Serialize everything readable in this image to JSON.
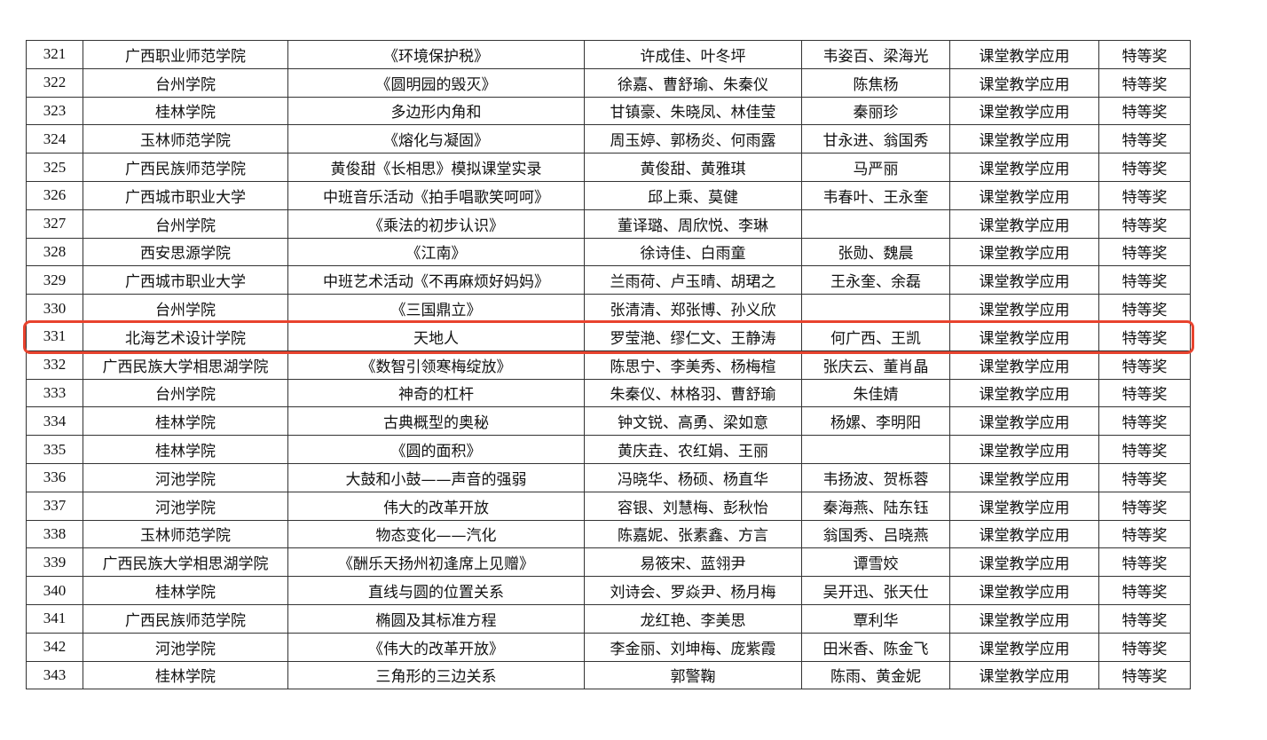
{
  "rows": [
    [
      "321",
      "广西职业师范学院",
      "《环境保护税》",
      "许成佳、叶冬坪",
      "韦姿百、梁海光",
      "课堂教学应用",
      "特等奖"
    ],
    [
      "322",
      "台州学院",
      "《圆明园的毁灭》",
      "徐嘉、曹舒瑜、朱秦仪",
      "陈焦杨",
      "课堂教学应用",
      "特等奖"
    ],
    [
      "323",
      "桂林学院",
      "多边形内角和",
      "甘镇豪、朱晓凤、林佳莹",
      "秦丽珍",
      "课堂教学应用",
      "特等奖"
    ],
    [
      "324",
      "玉林师范学院",
      "《熔化与凝固》",
      "周玉婷、郭杨炎、何雨露",
      "甘永进、翁国秀",
      "课堂教学应用",
      "特等奖"
    ],
    [
      "325",
      "广西民族师范学院",
      "黄俊甜《长相思》模拟课堂实录",
      "黄俊甜、黄雅琪",
      "马严丽",
      "课堂教学应用",
      "特等奖"
    ],
    [
      "326",
      "广西城市职业大学",
      "中班音乐活动《拍手唱歌笑呵呵》",
      "邱上乘、莫健",
      "韦春叶、王永奎",
      "课堂教学应用",
      "特等奖"
    ],
    [
      "327",
      "台州学院",
      "《乘法的初步认识》",
      "董译璐、周欣悦、李琳",
      "",
      "课堂教学应用",
      "特等奖"
    ],
    [
      "328",
      "西安思源学院",
      "《江南》",
      "徐诗佳、白雨童",
      "张勋、魏晨",
      "课堂教学应用",
      "特等奖"
    ],
    [
      "329",
      "广西城市职业大学",
      "中班艺术活动《不再麻烦好妈妈》",
      "兰雨荷、卢玉晴、胡珺之",
      "王永奎、余磊",
      "课堂教学应用",
      "特等奖"
    ],
    [
      "330",
      "台州学院",
      "《三国鼎立》",
      "张清清、郑张博、孙义欣",
      "",
      "课堂教学应用",
      "特等奖"
    ],
    [
      "331",
      "北海艺术设计学院",
      "天地人",
      "罗莹滟、缪仁文、王静涛",
      "何广西、王凯",
      "课堂教学应用",
      "特等奖"
    ],
    [
      "332",
      "广西民族大学相思湖学院",
      "《数智引领寒梅绽放》",
      "陈思宁、李美秀、杨梅楦",
      "张庆云、董肖晶",
      "课堂教学应用",
      "特等奖"
    ],
    [
      "333",
      "台州学院",
      "神奇的杠杆",
      "朱秦仪、林格羽、曹舒瑜",
      "朱佳婧",
      "课堂教学应用",
      "特等奖"
    ],
    [
      "334",
      "桂林学院",
      "古典概型的奥秘",
      "钟文锐、高勇、梁如意",
      "杨嫘、李明阳",
      "课堂教学应用",
      "特等奖"
    ],
    [
      "335",
      "桂林学院",
      "《圆的面积》",
      "黄庆垚、农红娟、王丽",
      "",
      "课堂教学应用",
      "特等奖"
    ],
    [
      "336",
      "河池学院",
      "大鼓和小鼓——声音的强弱",
      "冯晓华、杨硕、杨直华",
      "韦扬波、贺栎蓉",
      "课堂教学应用",
      "特等奖"
    ],
    [
      "337",
      "河池学院",
      "伟大的改革开放",
      "容银、刘慧梅、彭秋怡",
      "秦海燕、陆东钰",
      "课堂教学应用",
      "特等奖"
    ],
    [
      "338",
      "玉林师范学院",
      "物态变化——汽化",
      "陈嘉妮、张素鑫、方言",
      "翁国秀、吕晓燕",
      "课堂教学应用",
      "特等奖"
    ],
    [
      "339",
      "广西民族大学相思湖学院",
      "《酬乐天扬州初逢席上见赠》",
      "易筱宋、蓝翎尹",
      "谭雪姣",
      "课堂教学应用",
      "特等奖"
    ],
    [
      "340",
      "桂林学院",
      "直线与圆的位置关系",
      "刘诗会、罗焱尹、杨月梅",
      "吴开迅、张天仕",
      "课堂教学应用",
      "特等奖"
    ],
    [
      "341",
      "广西民族师范学院",
      "椭圆及其标准方程",
      "龙红艳、李美思",
      "覃利华",
      "课堂教学应用",
      "特等奖"
    ],
    [
      "342",
      "河池学院",
      "《伟大的改革开放》",
      "李金丽、刘坤梅、庞紫霞",
      "田米香、陈金飞",
      "课堂教学应用",
      "特等奖"
    ],
    [
      "343",
      "桂林学院",
      "三角形的三边关系",
      "郭警鞠",
      "陈雨、黄金妮",
      "课堂教学应用",
      "特等奖"
    ]
  ],
  "highlight": {
    "row_number": "331",
    "color": "#e8432e"
  }
}
